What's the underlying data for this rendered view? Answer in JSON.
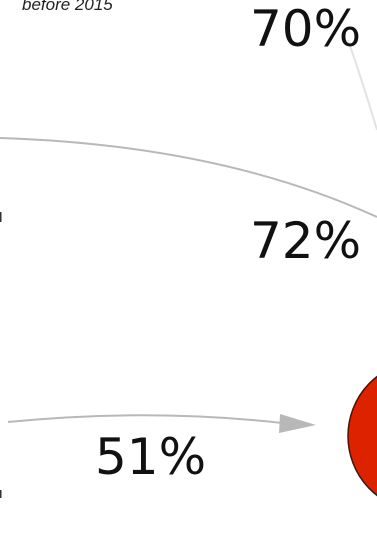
{
  "note": {
    "text": "before 2015"
  },
  "percentages": [
    "70%",
    "72%",
    "51%"
  ],
  "colors": {
    "arrow": "#b8b8b8",
    "node_fill": "#dd2200",
    "node_stroke": "#222222"
  }
}
